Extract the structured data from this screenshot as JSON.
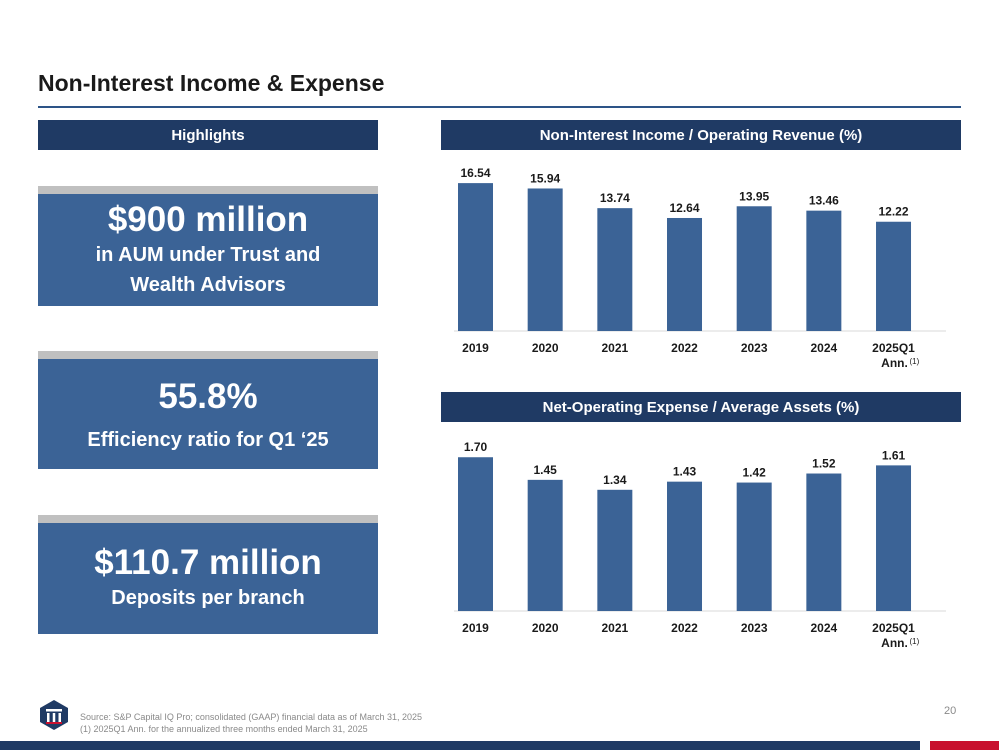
{
  "page": {
    "title": "Non-Interest Income & Expense",
    "page_number": "20"
  },
  "highlights": {
    "header": "Highlights",
    "items": [
      {
        "big": "$900 million",
        "small_lines": [
          "in AUM under Trust and",
          "Wealth Advisors"
        ]
      },
      {
        "big": "55.8%",
        "small_lines": [
          "Efficiency ratio for Q1 ‘25"
        ]
      },
      {
        "big": "$110.7 million",
        "small_lines": [
          "Deposits per branch"
        ]
      }
    ]
  },
  "footer": {
    "source": "Source: S&P Capital IQ Pro; consolidated (GAAP) financial data as of March 31, 2025",
    "note": "(1) 2025Q1 Ann. for the annualized three months ended March 31, 2025"
  },
  "colors": {
    "bar": "#3b6396",
    "header": "#1f3a64",
    "accent_red": "#c8102e"
  },
  "chart_data": [
    {
      "type": "bar",
      "title": "Non-Interest Income / Operating Revenue (%)",
      "categories": [
        "2019",
        "2020",
        "2021",
        "2022",
        "2023",
        "2024",
        "2025Q1"
      ],
      "category_sublabel": {
        "index": 6,
        "text": "Ann.",
        "superscript": "(1)"
      },
      "values": [
        16.54,
        15.94,
        13.74,
        12.64,
        13.95,
        13.46,
        12.22
      ],
      "value_labels": [
        "16.54",
        "15.94",
        "13.74",
        "12.64",
        "13.95",
        "13.46",
        "12.22"
      ],
      "ylim": [
        0,
        17.0
      ],
      "xlabel": "",
      "ylabel": "",
      "grid": false
    },
    {
      "type": "bar",
      "title": "Net-Operating Expense / Average Assets (%)",
      "categories": [
        "2019",
        "2020",
        "2021",
        "2022",
        "2023",
        "2024",
        "2025Q1"
      ],
      "category_sublabel": {
        "index": 6,
        "text": "Ann.",
        "superscript": "(1)"
      },
      "values": [
        1.7,
        1.45,
        1.34,
        1.43,
        1.42,
        1.52,
        1.61
      ],
      "value_labels": [
        "1.70",
        "1.45",
        "1.34",
        "1.43",
        "1.42",
        "1.52",
        "1.61"
      ],
      "ylim": [
        0,
        1.78
      ],
      "xlabel": "",
      "ylabel": "",
      "grid": false
    }
  ]
}
